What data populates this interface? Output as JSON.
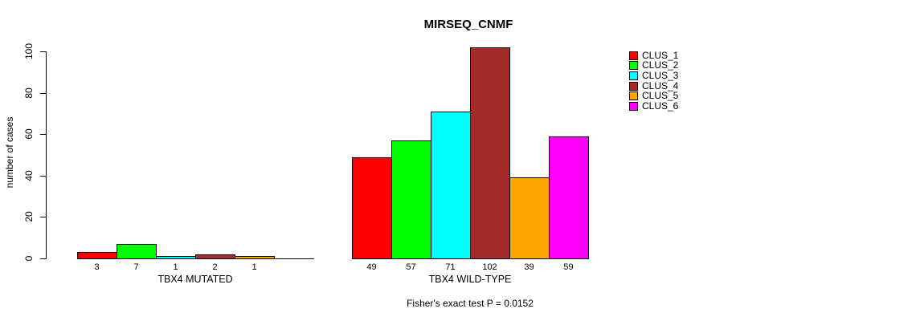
{
  "chart_data": {
    "type": "bar",
    "title": "MIRSEQ_CNMF",
    "ylabel": "number of cases",
    "xlabel": "",
    "yticks": [
      0,
      20,
      40,
      60,
      80,
      100
    ],
    "ylim": [
      0,
      100
    ],
    "grid": false,
    "legend_position": "top-right",
    "categories": [
      "TBX4 MUTATED",
      "TBX4 WILD-TYPE"
    ],
    "series": [
      {
        "name": "CLUS_1",
        "color": "#FF0000",
        "values": [
          3,
          49
        ]
      },
      {
        "name": "CLUS_2",
        "color": "#00FF00",
        "values": [
          7,
          57
        ]
      },
      {
        "name": "CLUS_3",
        "color": "#00FFFF",
        "values": [
          1,
          71
        ]
      },
      {
        "name": "CLUS_4",
        "color": "#A52A2A",
        "values": [
          2,
          102
        ]
      },
      {
        "name": "CLUS_5",
        "color": "#FFA500",
        "values": [
          1,
          39
        ]
      },
      {
        "name": "CLUS_6",
        "color": "#FF00FF",
        "values": [
          0,
          59
        ]
      }
    ],
    "bar_value_labels": [
      [
        "3",
        "7",
        "1",
        "2",
        "1",
        ""
      ],
      [
        "49",
        "57",
        "71",
        "102",
        "39",
        "59"
      ]
    ],
    "annotation": "Fisher's exact test P = 0.0152"
  }
}
